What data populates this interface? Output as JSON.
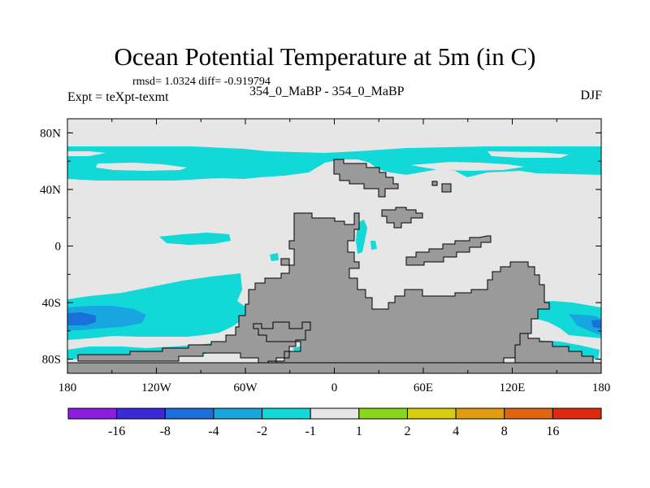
{
  "chart_data": {
    "type": "heatmap",
    "title": "Ocean Potential Temperature at 5m (in C)",
    "stats_line": "rmsd= 1.0324  diff= -0.919794",
    "left_label": "Expt = teXpt-texmt",
    "center_label": "354_0_MaBP - 354_0_MaBP",
    "right_label": "DJF",
    "x_ticks": [
      "180",
      "120W",
      "60W",
      "0",
      "60E",
      "120E",
      "180"
    ],
    "y_ticks": [
      "80N",
      "40N",
      "0",
      "40S",
      "80S"
    ],
    "xlim": [
      -180,
      180
    ],
    "ylim": [
      -90,
      90
    ],
    "colorbar": {
      "levels": [
        "-16",
        "-8",
        "-4",
        "-2",
        "-1",
        "1",
        "2",
        "4",
        "8",
        "16"
      ],
      "colors": [
        "#8a1de0",
        "#3a2ad8",
        "#1a6fd8",
        "#18a6e0",
        "#12d8d8",
        "#e6e6e6",
        "#8ad61c",
        "#d6cc10",
        "#e09d10",
        "#e06510",
        "#e02a10"
      ]
    },
    "colors": {
      "land": "#9a9a9a",
      "neutral": "#e6e6e6",
      "cool": "#12d8d8",
      "cooler": "#18a6e0",
      "coldest": "#1a6fd8"
    }
  }
}
